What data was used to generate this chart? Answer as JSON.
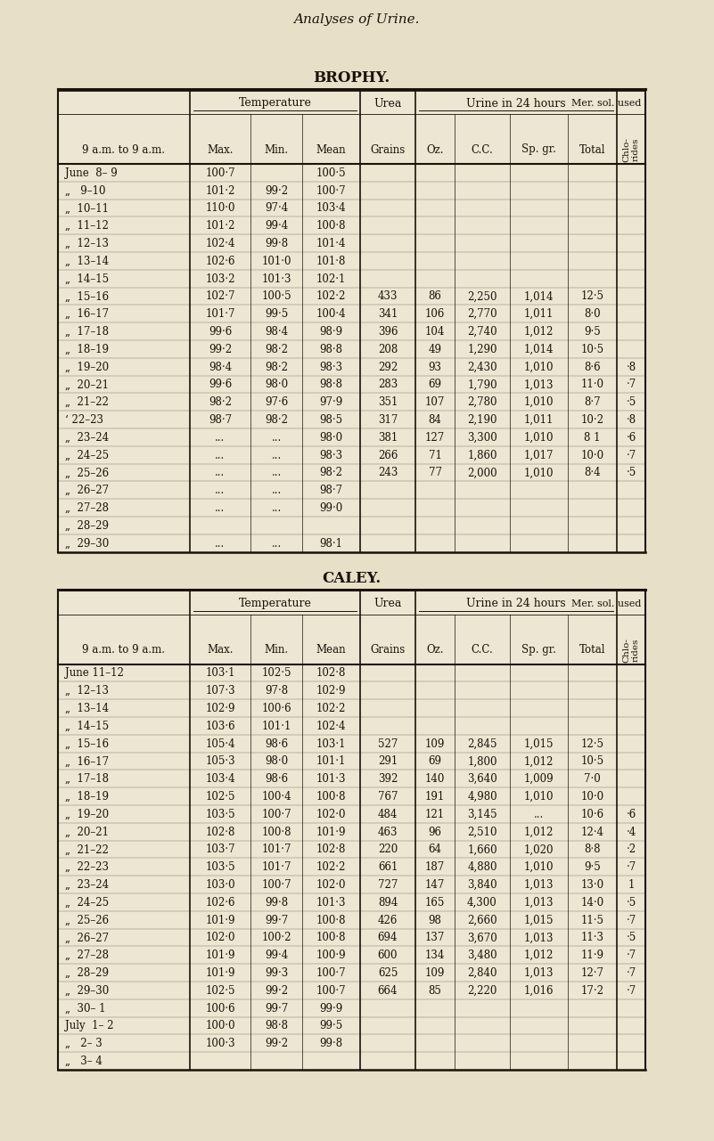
{
  "title": "Analyses of Urine.",
  "bg_color": "#e8dfc8",
  "table_bg": "#ede6d2",
  "text_color": "#1a1208",
  "brophy": {
    "subtitle": "BROPHY.",
    "time_label": "9 a.m. to 9 a.m.",
    "rows": [
      [
        "June  8– 9",
        "100·7",
        "",
        "100·5",
        "",
        "",
        "",
        "",
        "",
        ""
      ],
      [
        "„   9–10",
        "101·2",
        "99·2",
        "100·7",
        "",
        "",
        "",
        "",
        "",
        ""
      ],
      [
        "„  10–11",
        "110·0",
        "97·4",
        "103·4",
        "",
        "",
        "",
        "",
        "",
        ""
      ],
      [
        "„  11–12",
        "101·2",
        "99·4",
        "100·8",
        "",
        "",
        "",
        "",
        "",
        ""
      ],
      [
        "„  12–13",
        "102·4",
        "99·8",
        "101·4",
        "",
        "",
        "",
        "",
        "",
        ""
      ],
      [
        "„  13–14",
        "102·6",
        "101·0",
        "101·8",
        "",
        "",
        "",
        "",
        "",
        ""
      ],
      [
        "„  14–15",
        "103·2",
        "101·3",
        "102·1",
        "",
        "",
        "",
        "",
        "",
        ""
      ],
      [
        "„  15–16",
        "102·7",
        "100·5",
        "102·2",
        "433",
        "86",
        "2,250",
        "1,014",
        "12·5",
        ""
      ],
      [
        "„  16–17",
        "101·7",
        "99·5",
        "100·4",
        "341",
        "106",
        "2,770",
        "1,011",
        "8·0",
        ""
      ],
      [
        "„  17–18",
        "99·6",
        "98·4",
        "98·9",
        "396",
        "104",
        "2,740",
        "1,012",
        "9·5",
        ""
      ],
      [
        "„  18–19",
        "99·2",
        "98·2",
        "98·8",
        "208",
        "49",
        "1,290",
        "1,014",
        "10·5",
        ""
      ],
      [
        "„  19–20",
        "98·4",
        "98·2",
        "98·3",
        "292",
        "93",
        "2,430",
        "1,010",
        "8·6",
        "·8"
      ],
      [
        "„  20–21",
        "99·6",
        "98·0",
        "98·8",
        "283",
        "69",
        "1,790",
        "1,013",
        "11·0",
        "·7"
      ],
      [
        "„  21–22",
        "98·2",
        "97·6",
        "97·9",
        "351",
        "107",
        "2,780",
        "1,010",
        "8·7",
        "·5"
      ],
      [
        "‘ 22–23",
        "98·7",
        "98·2",
        "98·5",
        "317",
        "84",
        "2,190",
        "1,011",
        "10·2",
        "·8"
      ],
      [
        "„  23–24",
        "...",
        "...",
        "98·0",
        "381",
        "127",
        "3,300",
        "1,010",
        "8 1",
        "·6"
      ],
      [
        "„  24–25",
        "...",
        "...",
        "98·3",
        "266",
        "71",
        "1,860",
        "1,017",
        "10·0",
        "·7"
      ],
      [
        "„  25–26",
        "...",
        "...",
        "98·2",
        "243",
        "77",
        "2,000",
        "1,010",
        "8·4",
        "·5"
      ],
      [
        "„  26–27",
        "...",
        "...",
        "98·7",
        "",
        "",
        "",
        "",
        "",
        ""
      ],
      [
        "„  27–28",
        "...",
        "...",
        "99·0",
        "",
        "",
        "",
        "",
        "",
        ""
      ],
      [
        "„  28–29",
        "",
        "",
        "",
        "",
        "",
        "",
        "",
        "",
        ""
      ],
      [
        "„  29–30",
        "...",
        "...",
        "98·1",
        "",
        "",
        "",
        "",
        "",
        ""
      ]
    ]
  },
  "caley": {
    "subtitle": "CALEY.",
    "time_label": "9 a.m. to 9 a.m.",
    "rows": [
      [
        "June 11–12",
        "103·1",
        "102·5",
        "102·8",
        "",
        "",
        "",
        "",
        "",
        ""
      ],
      [
        "„  12–13",
        "107·3",
        "97·8",
        "102·9",
        "",
        "",
        "",
        "",
        "",
        ""
      ],
      [
        "„  13–14",
        "102·9",
        "100·6",
        "102·2",
        "",
        "",
        "",
        "",
        "",
        ""
      ],
      [
        "„  14–15",
        "103·6",
        "101·1",
        "102·4",
        "",
        "",
        "",
        "",
        "",
        ""
      ],
      [
        "„  15–16",
        "105·4",
        "98·6",
        "103·1",
        "527",
        "109",
        "2,845",
        "1,015",
        "12·5",
        ""
      ],
      [
        "„  16–17",
        "105·3",
        "98·0",
        "101·1",
        "291",
        "69",
        "1,800",
        "1,012",
        "10·5",
        ""
      ],
      [
        "„  17–18",
        "103·4",
        "98·6",
        "101·3",
        "392",
        "140",
        "3,640",
        "1,009",
        "7·0",
        ""
      ],
      [
        "„  18–19",
        "102·5",
        "100·4",
        "100·8",
        "767",
        "191",
        "4,980",
        "1,010",
        "10·0",
        ""
      ],
      [
        "„  19–20",
        "103·5",
        "100·7",
        "102·0",
        "484",
        "121",
        "3,145",
        "...",
        "10·6",
        "·6"
      ],
      [
        "„  20–21",
        "102·8",
        "100·8",
        "101·9",
        "463",
        "96",
        "2,510",
        "1,012",
        "12·4",
        "·4"
      ],
      [
        "„  21–22",
        "103·7",
        "101·7",
        "102·8",
        "220",
        "64",
        "1,660",
        "1,020",
        "8·8",
        "·2"
      ],
      [
        "„  22–23",
        "103·5",
        "101·7",
        "102·2",
        "661",
        "187",
        "4,880",
        "1,010",
        "9·5",
        "·7"
      ],
      [
        "„  23–24",
        "103·0",
        "100·7",
        "102·0",
        "727",
        "147",
        "3,840",
        "1,013",
        "13·0",
        "1"
      ],
      [
        "„  24–25",
        "102·6",
        "99·8",
        "101·3",
        "894",
        "165",
        "4,300",
        "1,013",
        "14·0",
        "·5"
      ],
      [
        "„  25–26",
        "101·9",
        "99·7",
        "100·8",
        "426",
        "98",
        "2,660",
        "1,015",
        "11·5",
        "·7"
      ],
      [
        "„  26–27",
        "102·0",
        "100·2",
        "100·8",
        "694",
        "137",
        "3,670",
        "1,013",
        "11·3",
        "·5"
      ],
      [
        "„  27–28",
        "101·9",
        "99·4",
        "100·9",
        "600",
        "134",
        "3,480",
        "1,012",
        "11·9",
        "·7"
      ],
      [
        "„  28–29",
        "101·9",
        "99·3",
        "100·7",
        "625",
        "109",
        "2,840",
        "1,013",
        "12·7",
        "·7"
      ],
      [
        "„  29–30",
        "102·5",
        "99·2",
        "100·7",
        "664",
        "85",
        "2,220",
        "1,016",
        "17·2",
        "·7"
      ],
      [
        "„  30– 1",
        "100·6",
        "99·7",
        "99·9",
        "",
        "",
        "",
        "",
        "",
        ""
      ],
      [
        "July  1– 2",
        "100·0",
        "98·8",
        "99·5",
        "",
        "",
        "",
        "",
        "",
        ""
      ],
      [
        "„   2– 3",
        "100·3",
        "99·2",
        "99·8",
        "",
        "",
        "",
        "",
        "",
        ""
      ],
      [
        "„   3– 4",
        "",
        "",
        "",
        "",
        "",
        "",
        "",
        "",
        ""
      ]
    ]
  }
}
